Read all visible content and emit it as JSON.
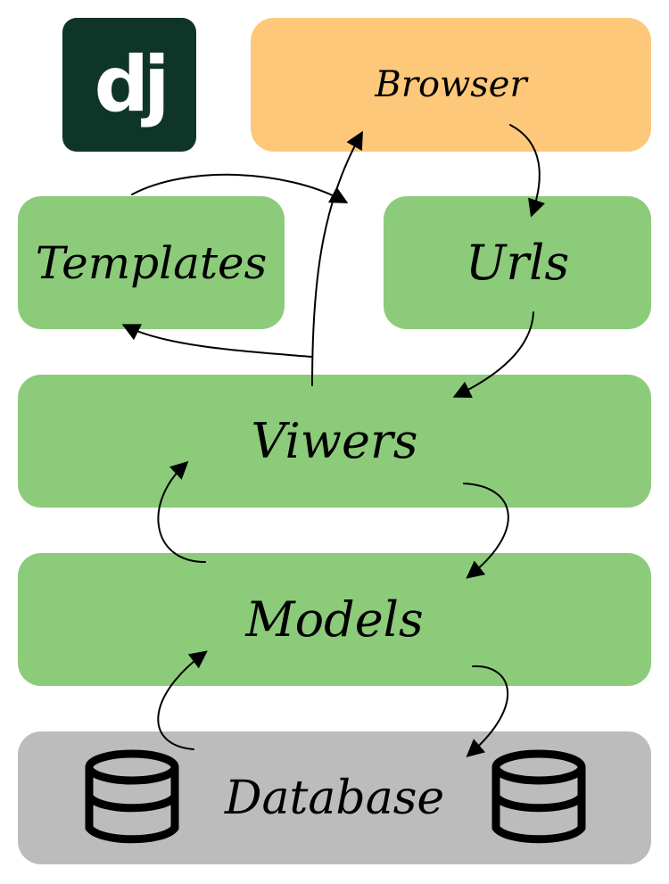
{
  "logo": {
    "text": "dj"
  },
  "nodes": {
    "browser": "Browser",
    "templates": "Templates",
    "urls": "Urls",
    "viewers": "Viwers",
    "models": "Models",
    "database": "Database"
  },
  "colors": {
    "logo_bg": "#0f3528",
    "browser_bg": "#fdc87a",
    "green_bg": "#8ccb7a",
    "database_bg": "#bcbcbc",
    "arrow": "#000000"
  },
  "icons": {
    "logo": "django-logo-icon",
    "database_left": "database-cylinder-icon",
    "database_right": "database-cylinder-icon",
    "arrows": "arrow-icon"
  }
}
